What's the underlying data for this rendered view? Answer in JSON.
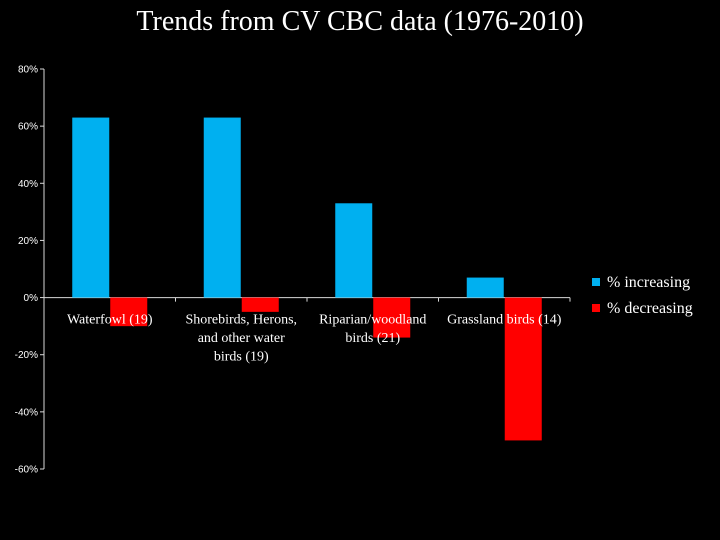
{
  "chart_data": {
    "type": "bar",
    "title": "Trends from CV CBC data (1976-2010)",
    "xlabel": "",
    "ylabel": "",
    "ylim": [
      -60,
      80
    ],
    "yticks": [
      "80%",
      "60%",
      "40%",
      "20%",
      "0%",
      "-20%",
      "-40%",
      "-60%"
    ],
    "categories": [
      [
        "Waterfowl (19)"
      ],
      [
        "Shorebirds, Herons,",
        "and other water",
        "birds (19)"
      ],
      [
        "Riparian/woodland",
        "birds (21)"
      ],
      [
        "Grassland birds (14)"
      ]
    ],
    "series": [
      {
        "name": "% increasing",
        "color": "#00B0F0",
        "values": [
          63,
          63,
          33,
          7
        ]
      },
      {
        "name": "% decreasing",
        "color": "#FF0000",
        "values": [
          -10,
          -5,
          -14,
          -50
        ]
      }
    ],
    "legend_position": "right"
  }
}
